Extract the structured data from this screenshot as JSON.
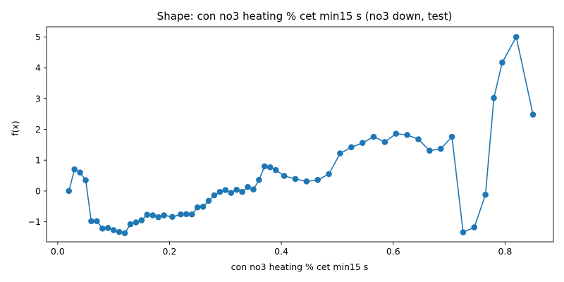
{
  "chart_data": {
    "type": "line",
    "title": "Shape: con no3 heating % cet min15 s (no3 down, test)",
    "xlabel": "con no3 heating % cet min15 s",
    "ylabel": "f(x)",
    "xlim": [
      -0.02,
      0.8865
    ],
    "ylim": [
      -1.65,
      5.33
    ],
    "xticks": [
      0.0,
      0.2,
      0.4,
      0.6,
      0.8
    ],
    "xtick_labels": [
      "0.0",
      "0.2",
      "0.4",
      "0.6",
      "0.8"
    ],
    "yticks": [
      -1,
      0,
      1,
      2,
      3,
      4,
      5
    ],
    "ytick_labels": [
      "−1",
      "0",
      "1",
      "2",
      "3",
      "4",
      "5"
    ],
    "grid": false,
    "legend": "none",
    "markers": true,
    "series_color": "#1f77b4",
    "series": [
      {
        "x": [
          0.02,
          0.03,
          0.04,
          0.05,
          0.06,
          0.07,
          0.08,
          0.09,
          0.1,
          0.11,
          0.12,
          0.13,
          0.14,
          0.15,
          0.16,
          0.17,
          0.18,
          0.19,
          0.205,
          0.22,
          0.23,
          0.24,
          0.25,
          0.26,
          0.27,
          0.28,
          0.29,
          0.3,
          0.31,
          0.32,
          0.33,
          0.34,
          0.35,
          0.36,
          0.37,
          0.38,
          0.39,
          0.405,
          0.425,
          0.445,
          0.465,
          0.485,
          0.505,
          0.525,
          0.545,
          0.565,
          0.585,
          0.605,
          0.625,
          0.645,
          0.665,
          0.685,
          0.705,
          0.725,
          0.745,
          0.765,
          0.78,
          0.795,
          0.82,
          0.85
        ],
        "values": [
          0.0,
          0.7,
          0.6,
          0.35,
          -0.98,
          -0.98,
          -1.22,
          -1.2,
          -1.27,
          -1.33,
          -1.37,
          -1.08,
          -1.02,
          -0.95,
          -0.77,
          -0.79,
          -0.85,
          -0.79,
          -0.84,
          -0.76,
          -0.75,
          -0.76,
          -0.53,
          -0.51,
          -0.32,
          -0.14,
          -0.03,
          0.03,
          -0.06,
          0.04,
          -0.03,
          0.13,
          0.05,
          0.36,
          0.8,
          0.77,
          0.68,
          0.49,
          0.39,
          0.31,
          0.36,
          0.55,
          1.22,
          1.42,
          1.56,
          1.76,
          1.59,
          1.86,
          1.82,
          1.68,
          1.31,
          1.37,
          1.76,
          -1.34,
          -1.18,
          -0.12,
          3.02,
          4.17,
          5.0,
          2.48
        ]
      }
    ]
  }
}
